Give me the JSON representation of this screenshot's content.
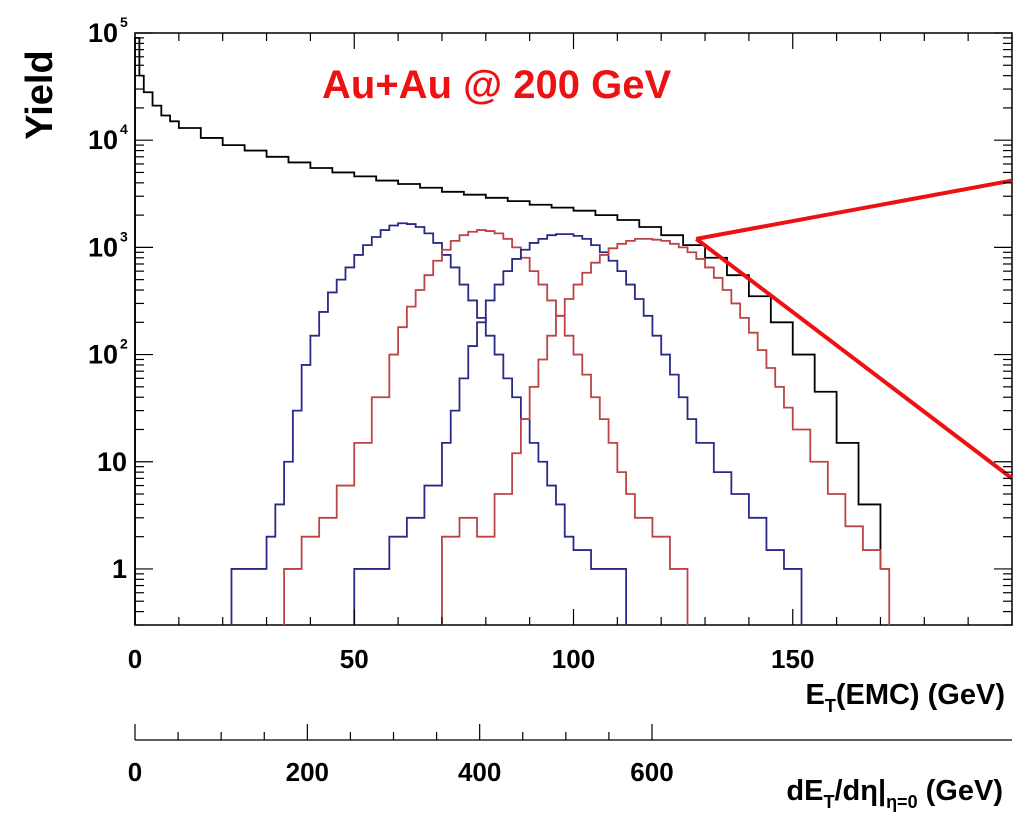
{
  "chart_data": {
    "type": "line",
    "subtype": "step-histogram",
    "title": "Au+Au @ 200 GeV",
    "title_color": "#ee1111",
    "xlabel_main": "(EMC) (GeV)",
    "xlabel_main_prefix": "E",
    "xlabel_main_sub": "T",
    "xlabel_secondary": "dE",
    "xlabel_secondary_parts": {
      "a": "dE",
      "a_sub": "T",
      "b": "/dη|",
      "b_sub": "η=0",
      "c": " (GeV)"
    },
    "ylabel": "Yield",
    "xlim": [
      0,
      200
    ],
    "ylim": [
      0.3,
      100000
    ],
    "y_scale": "log",
    "x_ticks": [
      "0",
      "50",
      "100",
      "150"
    ],
    "x_tick_values": [
      0,
      50,
      100,
      150
    ],
    "x2_ticks": [
      "0",
      "200",
      "400",
      "600"
    ],
    "x2_tick_values": [
      0,
      200,
      400,
      600
    ],
    "y_ticks": [
      {
        "value": 1,
        "base": "1",
        "exp": ""
      },
      {
        "value": 10,
        "base": "10",
        "exp": ""
      },
      {
        "value": 100,
        "base": "10",
        "exp": "2"
      },
      {
        "value": 1000,
        "base": "10",
        "exp": "3"
      },
      {
        "value": 10000,
        "base": "10",
        "exp": "4"
      },
      {
        "value": 100000,
        "base": "10",
        "exp": "5"
      }
    ],
    "series": [
      {
        "color": "#000000",
        "x": [
          0,
          1,
          2,
          4,
          6,
          8,
          10,
          15,
          20,
          25,
          30,
          35,
          40,
          45,
          50,
          55,
          60,
          65,
          70,
          75,
          80,
          85,
          90,
          95,
          100,
          105,
          110,
          115,
          120,
          125,
          130,
          135,
          140,
          145,
          150,
          155,
          160,
          165,
          170
        ],
        "y": [
          90000,
          40000,
          28000,
          21000,
          17000,
          15000,
          13000,
          10500,
          9000,
          8000,
          7000,
          6200,
          5500,
          5000,
          4600,
          4200,
          3900,
          3600,
          3300,
          3100,
          2900,
          2700,
          2500,
          2350,
          2200,
          2000,
          1800,
          1550,
          1300,
          1050,
          800,
          550,
          350,
          200,
          100,
          45,
          15,
          4,
          1
        ]
      },
      {
        "color": "#2a2a88",
        "x": [
          22,
          26,
          30,
          32,
          34,
          36,
          38,
          40,
          42,
          44,
          46,
          48,
          50,
          52,
          54,
          56,
          58,
          60,
          62,
          64,
          66,
          68,
          70,
          72,
          74,
          76,
          78,
          80,
          82,
          84,
          86,
          88,
          90,
          92,
          94,
          96,
          98,
          100,
          104,
          108,
          112
        ],
        "y": [
          1,
          1,
          2,
          4,
          10,
          30,
          80,
          150,
          250,
          380,
          500,
          650,
          850,
          1050,
          1250,
          1450,
          1600,
          1680,
          1650,
          1550,
          1350,
          1100,
          850,
          650,
          450,
          320,
          220,
          150,
          100,
          60,
          40,
          25,
          15,
          10,
          6,
          4,
          2,
          1.5,
          1,
          1,
          0
        ]
      },
      {
        "color": "#bb4444",
        "x": [
          34,
          38,
          42,
          46,
          50,
          54,
          58,
          60,
          62,
          64,
          66,
          68,
          70,
          72,
          74,
          76,
          78,
          80,
          82,
          84,
          86,
          88,
          90,
          92,
          94,
          96,
          98,
          100,
          102,
          104,
          106,
          108,
          110,
          112,
          114,
          118,
          122,
          126
        ],
        "y": [
          1,
          2,
          3,
          6,
          15,
          40,
          100,
          180,
          280,
          400,
          550,
          750,
          950,
          1150,
          1300,
          1400,
          1450,
          1420,
          1350,
          1200,
          1000,
          800,
          600,
          450,
          320,
          230,
          150,
          100,
          65,
          40,
          25,
          15,
          8,
          5,
          3,
          2,
          1,
          0
        ]
      },
      {
        "color": "#2a2a88",
        "x": [
          50,
          54,
          58,
          62,
          66,
          70,
          72,
          74,
          76,
          78,
          80,
          82,
          84,
          86,
          88,
          90,
          92,
          94,
          96,
          98,
          100,
          102,
          104,
          106,
          108,
          110,
          112,
          114,
          116,
          118,
          120,
          122,
          124,
          126,
          128,
          132,
          136,
          140,
          144,
          148,
          152
        ],
        "y": [
          1,
          1,
          2,
          3,
          6,
          15,
          30,
          60,
          120,
          200,
          320,
          450,
          600,
          780,
          950,
          1100,
          1200,
          1300,
          1330,
          1330,
          1280,
          1200,
          1050,
          900,
          750,
          600,
          450,
          330,
          230,
          150,
          100,
          65,
          40,
          25,
          15,
          8,
          5,
          3,
          1.5,
          1,
          0
        ]
      },
      {
        "color": "#bb4444",
        "x": [
          70,
          74,
          78,
          82,
          86,
          88,
          90,
          92,
          94,
          96,
          98,
          100,
          102,
          104,
          106,
          108,
          110,
          112,
          114,
          116,
          118,
          120,
          122,
          124,
          126,
          128,
          130,
          132,
          134,
          136,
          138,
          140,
          142,
          144,
          146,
          148,
          150,
          154,
          158,
          162,
          166,
          170,
          172
        ],
        "y": [
          2,
          3,
          2,
          5,
          12,
          25,
          50,
          90,
          150,
          230,
          330,
          450,
          580,
          720,
          850,
          980,
          1080,
          1150,
          1200,
          1200,
          1180,
          1150,
          1080,
          1000,
          900,
          780,
          650,
          520,
          400,
          300,
          220,
          160,
          110,
          75,
          50,
          32,
          20,
          10,
          5,
          2.5,
          1.5,
          1,
          0
        ]
      }
    ],
    "annotations": [
      {
        "type": "line",
        "color": "#ee1111",
        "from": [
          128,
          1200
        ],
        "to": [
          200,
          4200
        ]
      },
      {
        "type": "line",
        "color": "#ee1111",
        "from": [
          128,
          1200
        ],
        "to": [
          200,
          7
        ]
      }
    ]
  }
}
